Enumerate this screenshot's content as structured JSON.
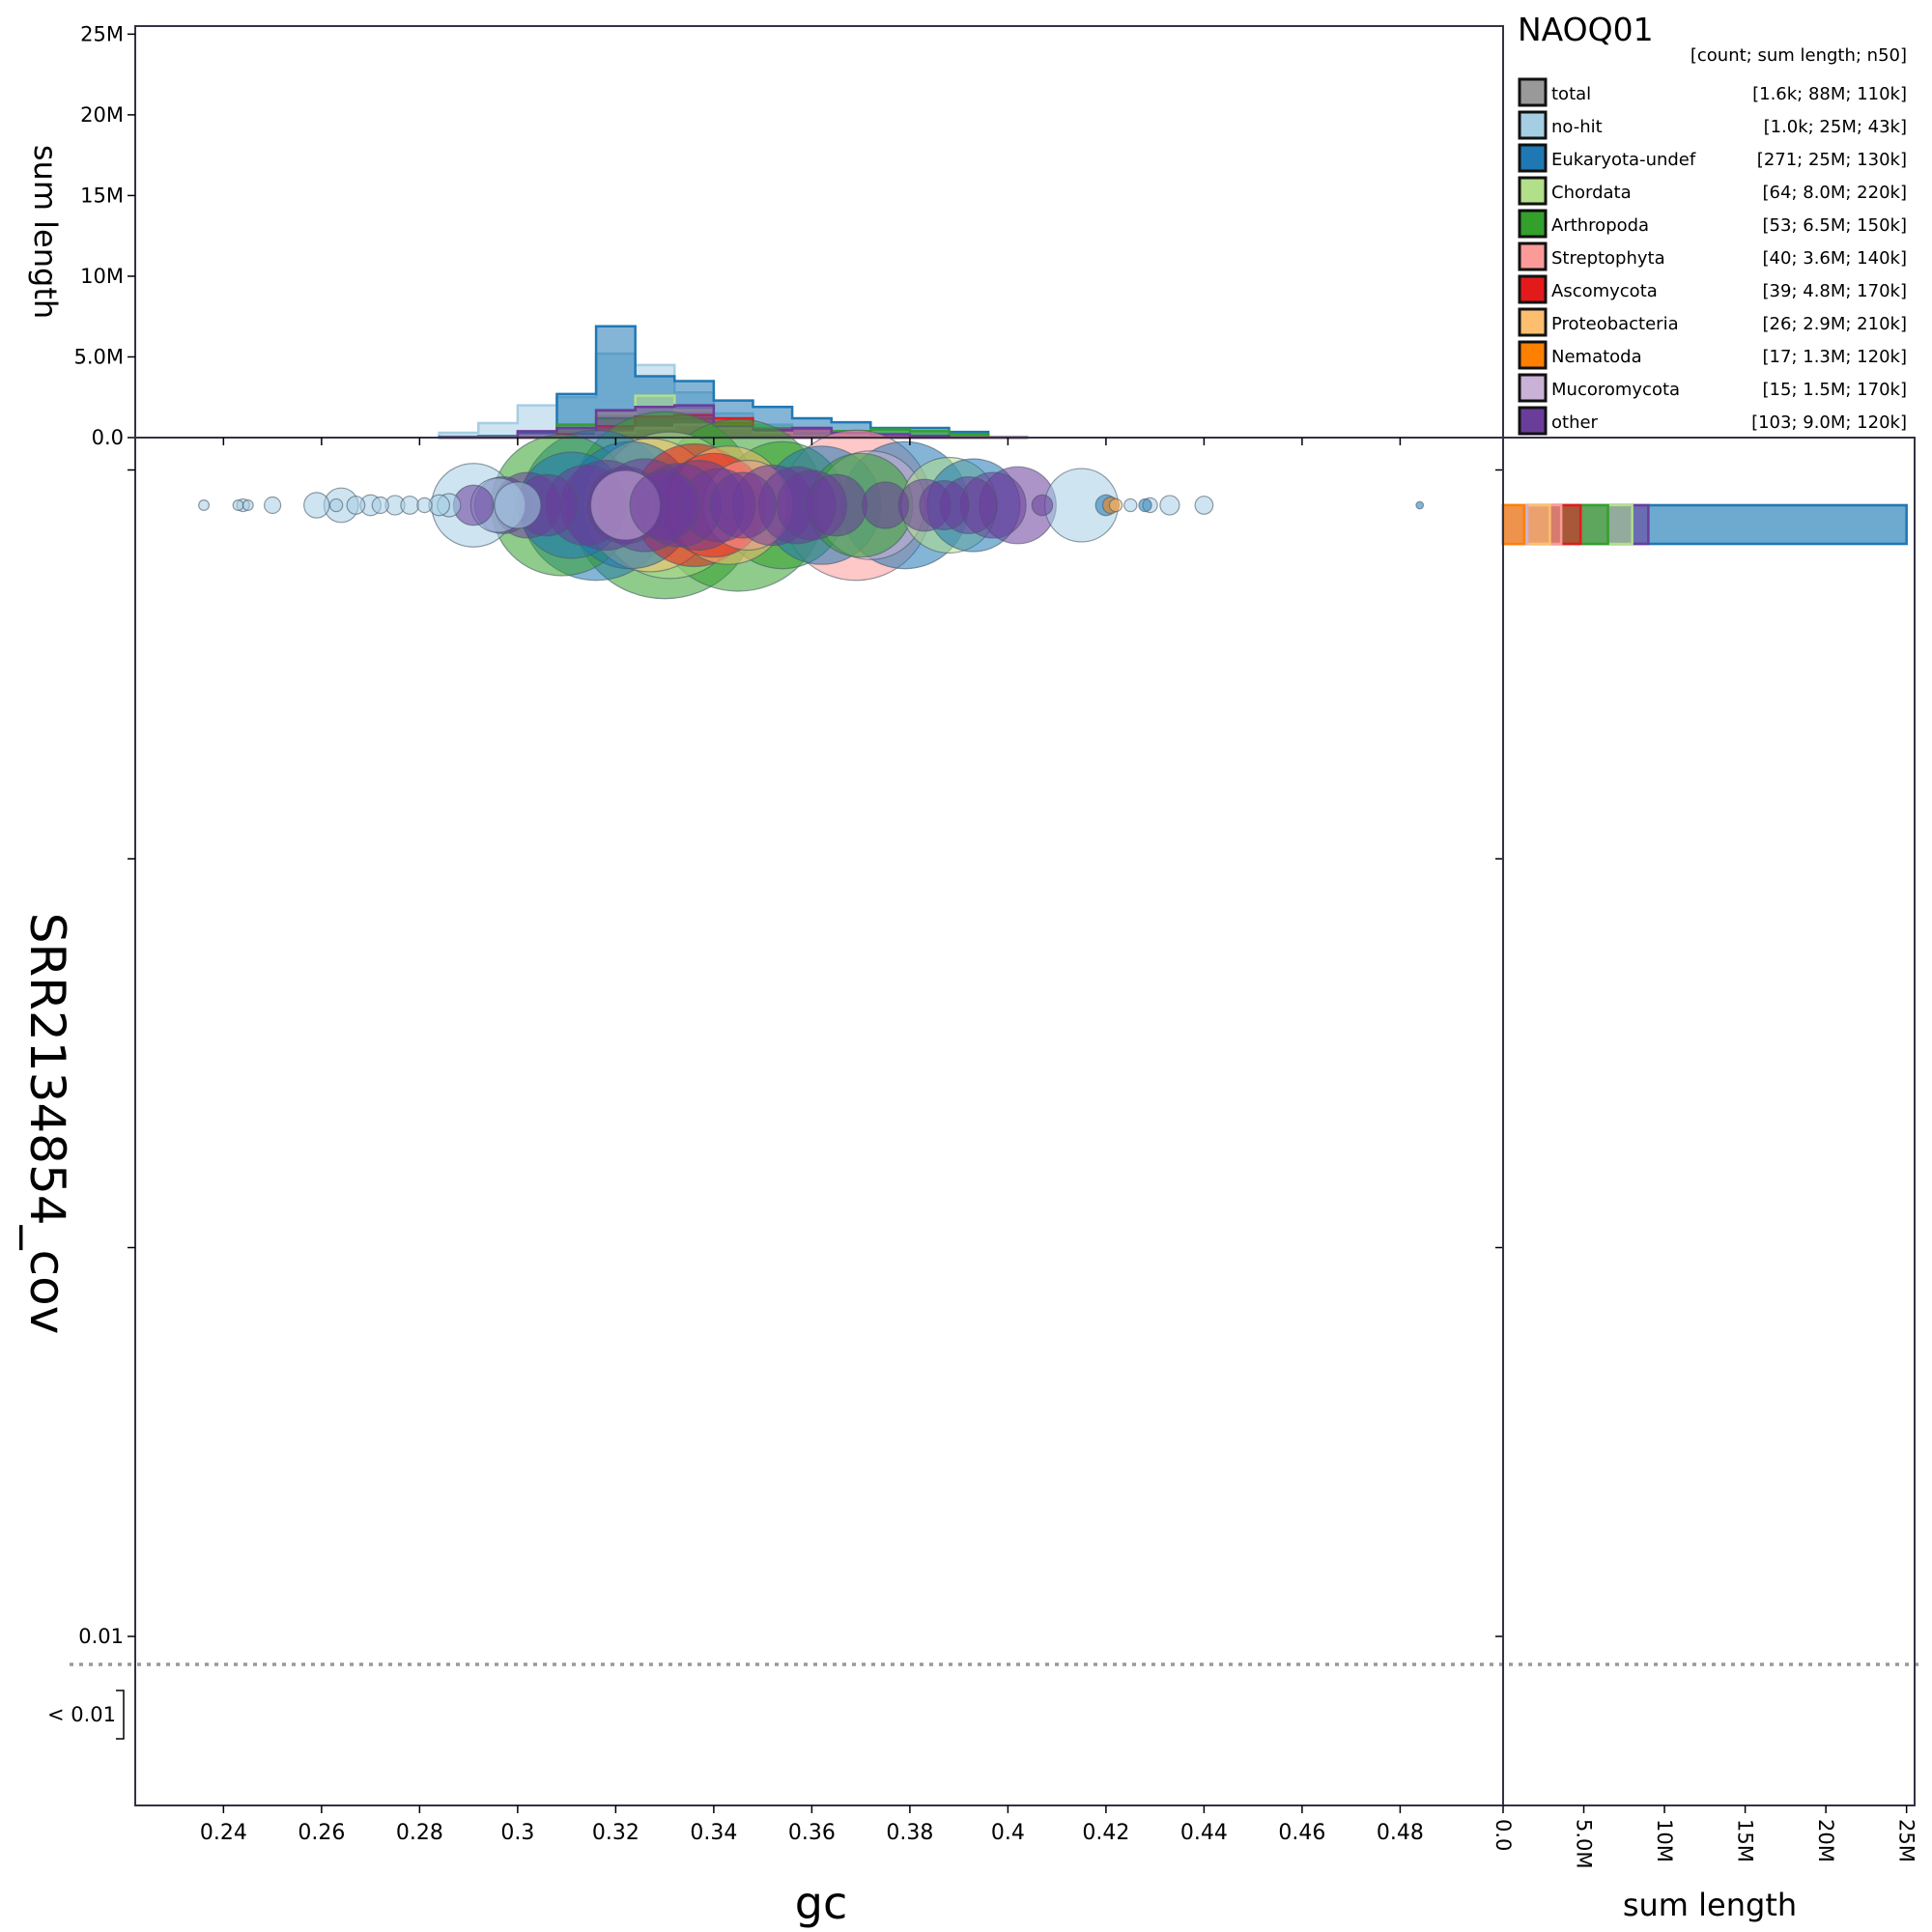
{
  "chart_data": {
    "type": "scatter",
    "title": "NAOQ01",
    "xlabel": "gc",
    "ylabel": "SRR2134854_cov",
    "xlim": [
      0.222,
      0.501
    ],
    "x_ticks": [
      0.24,
      0.26,
      0.28,
      0.3,
      0.32,
      0.34,
      0.36,
      0.38,
      0.4,
      0.42,
      0.44,
      0.46,
      0.48
    ],
    "y_ticks": [
      {
        "label": "0.01",
        "value": 0.01
      },
      {
        "label": "",
        "value": 0.1
      },
      {
        "label": "",
        "value": 1
      },
      {
        "label": "",
        "value": 10
      }
    ],
    "y_below_label": "< 0.01",
    "y_threshold": 0.01,
    "top_hist": {
      "ylabel": "sum length",
      "ylim": [
        0,
        25500000
      ],
      "ticks": [
        {
          "label": "0.0",
          "value": 0
        },
        {
          "label": "5.0M",
          "value": 5000000
        },
        {
          "label": "10M",
          "value": 10000000
        },
        {
          "label": "15M",
          "value": 15000000
        },
        {
          "label": "20M",
          "value": 20000000
        },
        {
          "label": "25M",
          "value": 25000000
        }
      ],
      "bin_edges": [
        0.284,
        0.292,
        0.3,
        0.308,
        0.316,
        0.324,
        0.332,
        0.34,
        0.348,
        0.356,
        0.364,
        0.372,
        0.38,
        0.388,
        0.396,
        0.404
      ],
      "series": [
        {
          "name": "no-hit",
          "values": [
            300000,
            900000,
            2000000,
            2500000,
            5200000,
            4500000,
            2800000,
            1500000,
            800000,
            600000,
            400000,
            250000,
            150000,
            100000,
            50000
          ]
        },
        {
          "name": "Eukaryota-undef",
          "values": [
            50000,
            100000,
            300000,
            2700000,
            6900000,
            3800000,
            3500000,
            2300000,
            1900000,
            1200000,
            950000,
            600000,
            600000,
            350000,
            0
          ]
        },
        {
          "name": "Chordata",
          "values": [
            0,
            0,
            100000,
            600000,
            1500000,
            2600000,
            1700000,
            900000,
            400000,
            200000,
            0,
            0,
            0,
            0,
            0
          ]
        },
        {
          "name": "Arthropoda",
          "values": [
            0,
            0,
            0,
            800000,
            1200000,
            1300000,
            1200000,
            900000,
            600000,
            500000,
            400000,
            500000,
            400000,
            200000,
            0
          ]
        },
        {
          "name": "Streptophyta",
          "values": [
            0,
            0,
            0,
            100000,
            400000,
            600000,
            700000,
            500000,
            500000,
            400000,
            300000,
            100000,
            0,
            0,
            0
          ]
        },
        {
          "name": "Ascomycota",
          "values": [
            0,
            0,
            0,
            200000,
            700000,
            1300000,
            1400000,
            1200000,
            400000,
            100000,
            0,
            0,
            0,
            0,
            0
          ]
        },
        {
          "name": "Proteobacteria",
          "values": [
            0,
            0,
            0,
            100000,
            300000,
            600000,
            800000,
            600000,
            300000,
            100000,
            0,
            0,
            0,
            0,
            0
          ]
        },
        {
          "name": "other",
          "values": [
            0,
            0,
            400000,
            600000,
            1700000,
            1900000,
            2000000,
            700000,
            500000,
            600000,
            300000,
            200000,
            100000,
            0,
            0
          ]
        }
      ]
    },
    "right_hist": {
      "xlabel": "sum length",
      "xlim": [
        0,
        25500000
      ],
      "ticks": [
        {
          "label": "0.0",
          "value": 0
        },
        {
          "label": "5.0M",
          "value": 5000000
        },
        {
          "label": "10M",
          "value": 10000000
        },
        {
          "label": "15M",
          "value": 15000000
        },
        {
          "label": "20M",
          "value": 20000000
        },
        {
          "label": "25M",
          "value": 25000000
        }
      ],
      "bars": [
        {
          "name": "no-hit",
          "value": 25000000
        },
        {
          "name": "Eukaryota-undef",
          "value": 25000000
        },
        {
          "name": "other",
          "value": 9000000
        },
        {
          "name": "Chordata",
          "value": 8000000
        },
        {
          "name": "Arthropoda",
          "value": 6500000
        },
        {
          "name": "Ascomycota",
          "value": 4800000
        },
        {
          "name": "Streptophyta",
          "value": 3600000
        },
        {
          "name": "Proteobacteria",
          "value": 2900000
        },
        {
          "name": "Mucoromycota",
          "value": 1500000
        },
        {
          "name": "Nematoda",
          "value": 1300000
        }
      ]
    },
    "legend": {
      "title": "NAOQ01",
      "header": "[count; sum length; n50]",
      "placement": "top-right",
      "entries": [
        {
          "name": "total",
          "stats": "[1.6k; 88M; 110k]",
          "color": "#999999"
        },
        {
          "name": "no-hit",
          "stats": "[1.0k; 25M; 43k]",
          "color": "#a6cee3"
        },
        {
          "name": "Eukaryota-undef",
          "stats": "[271; 25M; 130k]",
          "color": "#1f78b4"
        },
        {
          "name": "Chordata",
          "stats": "[64; 8.0M; 220k]",
          "color": "#b2df8a"
        },
        {
          "name": "Arthropoda",
          "stats": "[53; 6.5M; 150k]",
          "color": "#33a02c"
        },
        {
          "name": "Streptophyta",
          "stats": "[40; 3.6M; 140k]",
          "color": "#fb9a99"
        },
        {
          "name": "Ascomycota",
          "stats": "[39; 4.8M; 170k]",
          "color": "#e31a1c"
        },
        {
          "name": "Proteobacteria",
          "stats": "[26; 2.9M; 210k]",
          "color": "#fdbf6f"
        },
        {
          "name": "Nematoda",
          "stats": "[17; 1.3M; 120k]",
          "color": "#ff7f00"
        },
        {
          "name": "Mucoromycota",
          "stats": "[15; 1.5M; 170k]",
          "color": "#cab2d6"
        },
        {
          "name": "other",
          "stats": "[103; 9.0M; 120k]",
          "color": "#6a3d9a"
        }
      ]
    },
    "points_note": "all contigs plotted at the same coverage level near the top of the panel; point area proportional to contig length",
    "points": [
      {
        "x": 0.236,
        "len": 2000,
        "cat": "no-hit"
      },
      {
        "x": 0.243,
        "len": 2000,
        "cat": "no-hit"
      },
      {
        "x": 0.244,
        "len": 3000,
        "cat": "no-hit"
      },
      {
        "x": 0.245,
        "len": 2000,
        "cat": "no-hit"
      },
      {
        "x": 0.25,
        "len": 5000,
        "cat": "no-hit"
      },
      {
        "x": 0.259,
        "len": 12000,
        "cat": "no-hit"
      },
      {
        "x": 0.263,
        "len": 3000,
        "cat": "no-hit"
      },
      {
        "x": 0.264,
        "len": 22000,
        "cat": "no-hit"
      },
      {
        "x": 0.267,
        "len": 6000,
        "cat": "no-hit"
      },
      {
        "x": 0.27,
        "len": 8000,
        "cat": "no-hit"
      },
      {
        "x": 0.272,
        "len": 5000,
        "cat": "no-hit"
      },
      {
        "x": 0.275,
        "len": 7000,
        "cat": "no-hit"
      },
      {
        "x": 0.278,
        "len": 6000,
        "cat": "no-hit"
      },
      {
        "x": 0.281,
        "len": 4000,
        "cat": "no-hit"
      },
      {
        "x": 0.284,
        "len": 8000,
        "cat": "no-hit"
      },
      {
        "x": 0.286,
        "len": 10000,
        "cat": "no-hit"
      },
      {
        "x": 0.291,
        "len": 130000,
        "cat": "no-hit"
      },
      {
        "x": 0.296,
        "len": 55000,
        "cat": "no-hit"
      },
      {
        "x": 0.3,
        "len": 40000,
        "cat": "no-hit"
      },
      {
        "x": 0.415,
        "len": 100000,
        "cat": "no-hit"
      },
      {
        "x": 0.425,
        "len": 3000,
        "cat": "no-hit"
      },
      {
        "x": 0.429,
        "len": 4000,
        "cat": "no-hit"
      },
      {
        "x": 0.433,
        "len": 7000,
        "cat": "no-hit"
      },
      {
        "x": 0.44,
        "len": 6000,
        "cat": "no-hit"
      },
      {
        "x": 0.311,
        "len": 210000,
        "cat": "Eukaryota-undef"
      },
      {
        "x": 0.316,
        "len": 420000,
        "cat": "Eukaryota-undef"
      },
      {
        "x": 0.323,
        "len": 300000,
        "cat": "Eukaryota-undef"
      },
      {
        "x": 0.362,
        "len": 260000,
        "cat": "Eukaryota-undef"
      },
      {
        "x": 0.379,
        "len": 300000,
        "cat": "Eukaryota-undef"
      },
      {
        "x": 0.393,
        "len": 160000,
        "cat": "Eukaryota-undef"
      },
      {
        "x": 0.42,
        "len": 8000,
        "cat": "Eukaryota-undef"
      },
      {
        "x": 0.428,
        "len": 3000,
        "cat": "Eukaryota-undef"
      },
      {
        "x": 0.484,
        "len": 1000,
        "cat": "Eukaryota-undef"
      },
      {
        "x": 0.331,
        "len": 400000,
        "cat": "Chordata"
      },
      {
        "x": 0.388,
        "len": 170000,
        "cat": "Chordata"
      },
      {
        "x": 0.309,
        "len": 370000,
        "cat": "Arthropoda"
      },
      {
        "x": 0.33,
        "len": 650000,
        "cat": "Arthropoda"
      },
      {
        "x": 0.345,
        "len": 550000,
        "cat": "Arthropoda"
      },
      {
        "x": 0.354,
        "len": 300000,
        "cat": "Arthropoda"
      },
      {
        "x": 0.37,
        "len": 200000,
        "cat": "Arthropoda"
      },
      {
        "x": 0.369,
        "len": 420000,
        "cat": "Streptophyta"
      },
      {
        "x": 0.347,
        "len": 150000,
        "cat": "Streptophyta"
      },
      {
        "x": 0.336,
        "len": 280000,
        "cat": "Ascomycota"
      },
      {
        "x": 0.34,
        "len": 200000,
        "cat": "Ascomycota"
      },
      {
        "x": 0.327,
        "len": 330000,
        "cat": "Proteobacteria"
      },
      {
        "x": 0.343,
        "len": 260000,
        "cat": "Proteobacteria"
      },
      {
        "x": 0.422,
        "len": 3000,
        "cat": "Proteobacteria"
      },
      {
        "x": 0.421,
        "len": 5000,
        "cat": "Nematoda"
      },
      {
        "x": 0.372,
        "len": 220000,
        "cat": "Mucoromycota"
      },
      {
        "x": 0.322,
        "len": 90000,
        "cat": "Mucoromycota"
      },
      {
        "x": 0.291,
        "len": 30000,
        "cat": "other"
      },
      {
        "x": 0.297,
        "len": 60000,
        "cat": "other"
      },
      {
        "x": 0.302,
        "len": 80000,
        "cat": "other"
      },
      {
        "x": 0.306,
        "len": 70000,
        "cat": "other"
      },
      {
        "x": 0.314,
        "len": 120000,
        "cat": "other"
      },
      {
        "x": 0.318,
        "len": 150000,
        "cat": "other"
      },
      {
        "x": 0.322,
        "len": 110000,
        "cat": "other"
      },
      {
        "x": 0.326,
        "len": 160000,
        "cat": "other"
      },
      {
        "x": 0.33,
        "len": 90000,
        "cat": "other"
      },
      {
        "x": 0.333,
        "len": 130000,
        "cat": "other"
      },
      {
        "x": 0.337,
        "len": 150000,
        "cat": "other"
      },
      {
        "x": 0.341,
        "len": 100000,
        "cat": "other"
      },
      {
        "x": 0.346,
        "len": 80000,
        "cat": "other"
      },
      {
        "x": 0.352,
        "len": 120000,
        "cat": "other"
      },
      {
        "x": 0.357,
        "len": 110000,
        "cat": "other"
      },
      {
        "x": 0.36,
        "len": 90000,
        "cat": "other"
      },
      {
        "x": 0.365,
        "len": 70000,
        "cat": "other"
      },
      {
        "x": 0.375,
        "len": 40000,
        "cat": "other"
      },
      {
        "x": 0.383,
        "len": 50000,
        "cat": "other"
      },
      {
        "x": 0.387,
        "len": 45000,
        "cat": "other"
      },
      {
        "x": 0.392,
        "len": 60000,
        "cat": "other"
      },
      {
        "x": 0.397,
        "len": 80000,
        "cat": "other"
      },
      {
        "x": 0.402,
        "len": 110000,
        "cat": "other"
      },
      {
        "x": 0.407,
        "len": 8000,
        "cat": "other"
      }
    ]
  }
}
